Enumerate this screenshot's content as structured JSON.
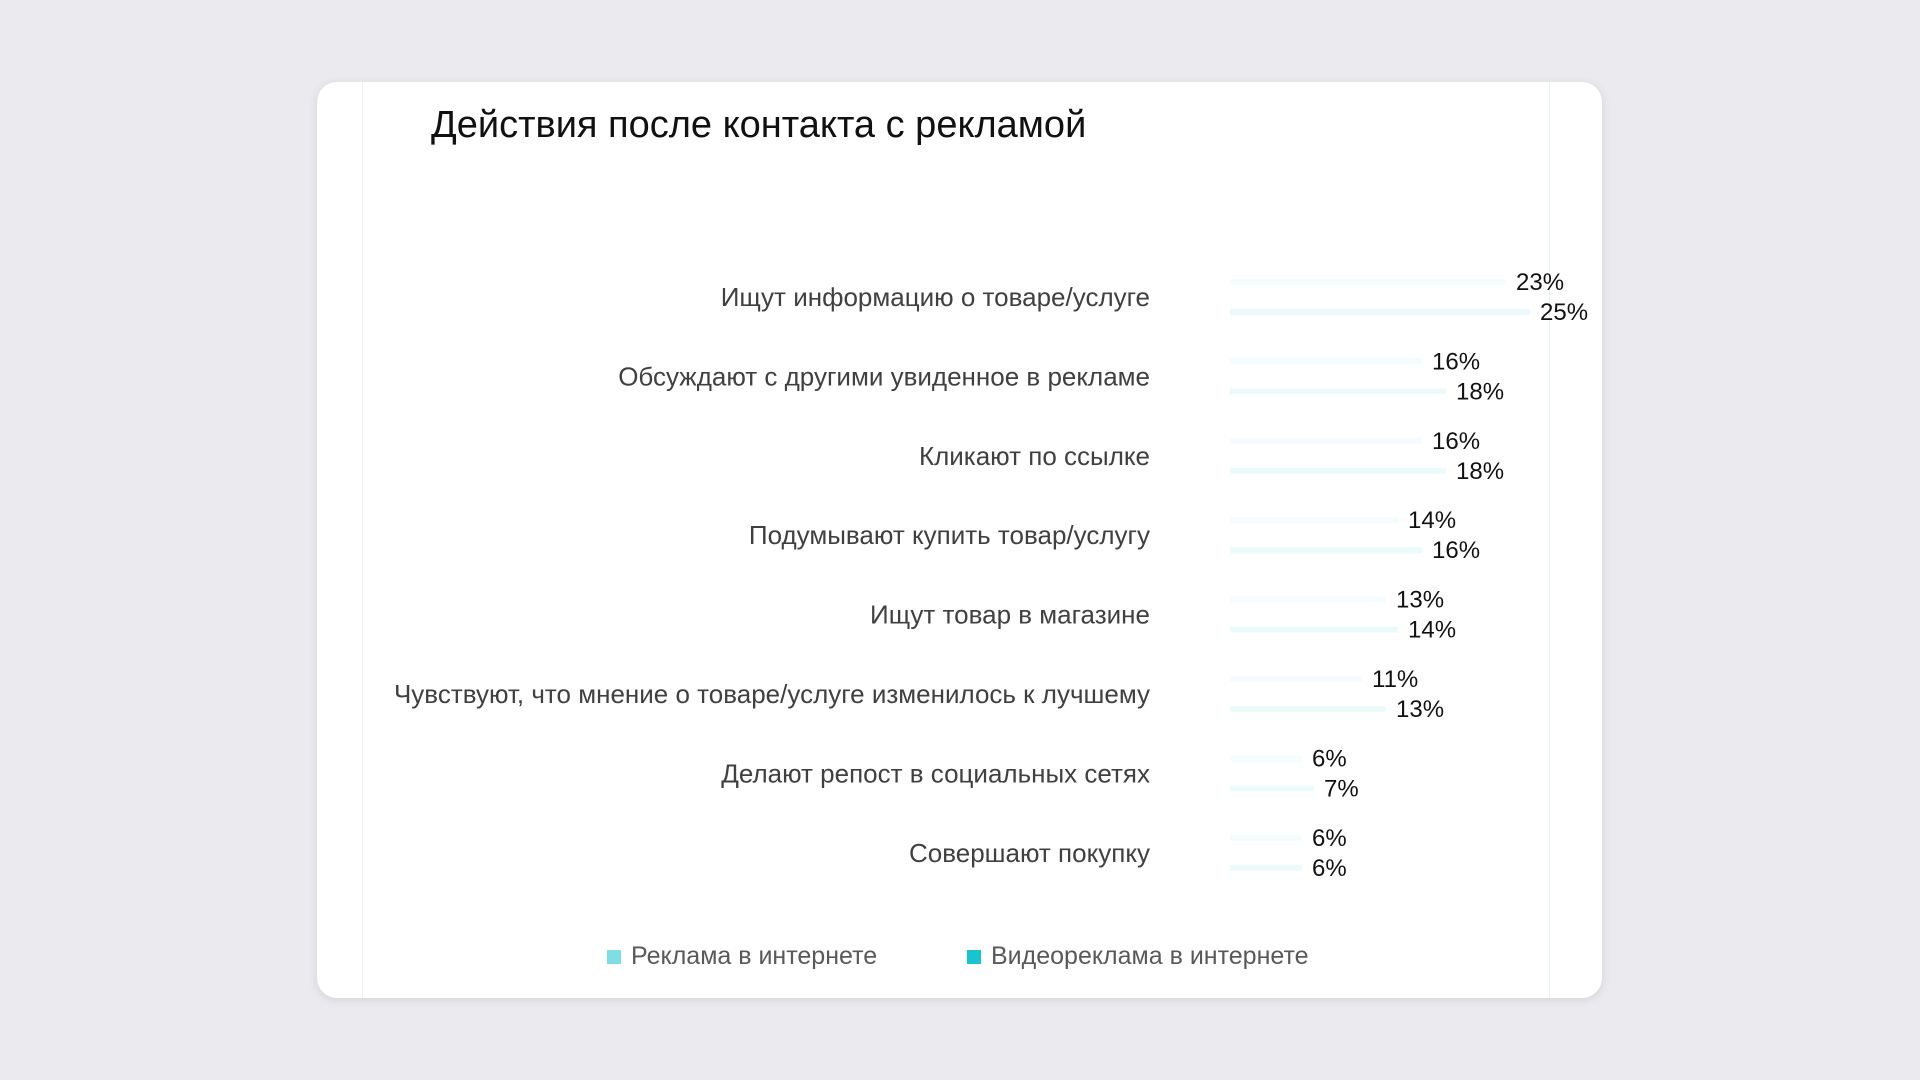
{
  "chart_data": {
    "type": "bar",
    "orientation": "horizontal",
    "title": "Действия после контакта с рекламой",
    "categories": [
      "Ищут информацию о товаре/услуге",
      "Обсуждают с другими увиденное в рекламе",
      "Кликают по ссылке",
      "Подумывают купить товар/услугу",
      "Ищут товар в магазине",
      "Чувствуют, что мнение о товаре/услуге изменилось к лучшему",
      "Делают репост в социальных сетях",
      "Совершают покупку"
    ],
    "series": [
      {
        "name": "Реклама в интернете",
        "color": "#7fdde4",
        "values": [
          23,
          16,
          16,
          14,
          13,
          11,
          6,
          6
        ],
        "labels": [
          "23%",
          "16%",
          "16%",
          "14%",
          "13%",
          "11%",
          "6%",
          "6%"
        ]
      },
      {
        "name": "Видеореклама в интернете",
        "color": "#19c3cf",
        "values": [
          25,
          18,
          18,
          16,
          14,
          13,
          7,
          6
        ],
        "labels": [
          "25%",
          "18%",
          "18%",
          "16%",
          "14%",
          "13%",
          "7%",
          "6%"
        ]
      }
    ],
    "unit": "%",
    "legend": "bottom",
    "grid": false
  }
}
